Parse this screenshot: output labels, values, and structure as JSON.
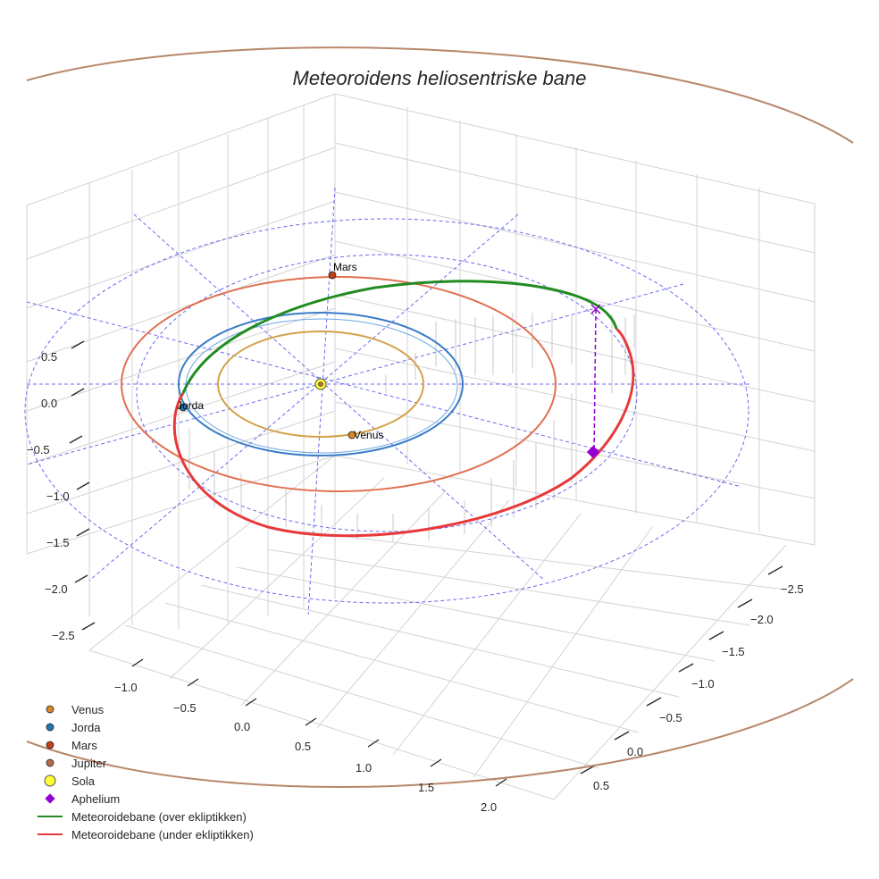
{
  "chart_data": {
    "type": "line",
    "title": "Meteoroidens heliosentriske bane",
    "projection": "3d",
    "grid": true,
    "legend_placement": "bottom-left",
    "axes": {
      "x": {
        "ticks": [
          "−1.0",
          "−0.5",
          "0.0",
          "0.5",
          "1.0",
          "1.5",
          "2.0"
        ],
        "range": [
          -1.2,
          2.2
        ]
      },
      "y": {
        "ticks": [
          "−2.5",
          "−2.0",
          "−1.5",
          "−1.0",
          "−0.5",
          "0.0",
          "0.5"
        ],
        "range": [
          -2.7,
          0.7
        ]
      },
      "z": {
        "ticks": [
          "0.5",
          "0.0",
          "−0.5",
          "−1.0",
          "−1.5",
          "−2.0",
          "−2.5"
        ],
        "range": [
          -2.7,
          0.7
        ]
      }
    },
    "planet_orbits": [
      {
        "name": "Venus",
        "radius_au": 0.72,
        "color": "#d4a24c"
      },
      {
        "name": "Jorda",
        "radius_au": 1.0,
        "color": "#3a7cc8"
      },
      {
        "name": "Mars",
        "radius_au": 1.52,
        "color": "#e07050"
      },
      {
        "name": "Jupiter",
        "radius_au": 5.2,
        "color": "#b8876a"
      }
    ],
    "planets": [
      {
        "name": "Venus",
        "label": "Venus",
        "x": 0.26,
        "y": -0.68,
        "color": "#d8862a"
      },
      {
        "name": "Jorda",
        "label": "Jorda",
        "x": 0.0,
        "y": 1.0,
        "color": "#1f77b4"
      },
      {
        "name": "Mars",
        "label": "Mars",
        "x": -1.52,
        "y": 0.0,
        "color": "#c0401a"
      },
      {
        "name": "Jupiter",
        "label": "",
        "x": 0.0,
        "y": 0.0,
        "color": "#b86a4a"
      }
    ],
    "sun": {
      "name": "Sola",
      "x": 0,
      "y": 0,
      "color": "#ffff33"
    },
    "aphelion": {
      "name": "Aphelium",
      "x": -0.95,
      "y": -1.88,
      "z": 0.0,
      "color": "#9400d3"
    },
    "series": [
      {
        "name": "Meteoroidebane (over ekliptikken)",
        "color": "#228b22"
      },
      {
        "name": "Meteoroidebane (under ekliptikken)",
        "color": "#e8383a"
      }
    ],
    "legend": [
      {
        "label": "Venus",
        "marker": "circle",
        "color": "#d8862a"
      },
      {
        "label": "Jorda",
        "marker": "circle",
        "color": "#1f77b4"
      },
      {
        "label": "Mars",
        "marker": "circle",
        "color": "#c0401a"
      },
      {
        "label": "Jupiter",
        "marker": "circle",
        "color": "#b86a4a"
      },
      {
        "label": "Sola",
        "marker": "sun",
        "color": "#ffff33"
      },
      {
        "label": "Aphelium",
        "marker": "diamond",
        "color": "#9400d3"
      },
      {
        "label": "Meteoroidebane (over ekliptikken)",
        "marker": "line",
        "color": "#228b22"
      },
      {
        "label": "Meteoroidebane (under ekliptikken)",
        "marker": "line",
        "color": "#e8383a"
      }
    ]
  }
}
